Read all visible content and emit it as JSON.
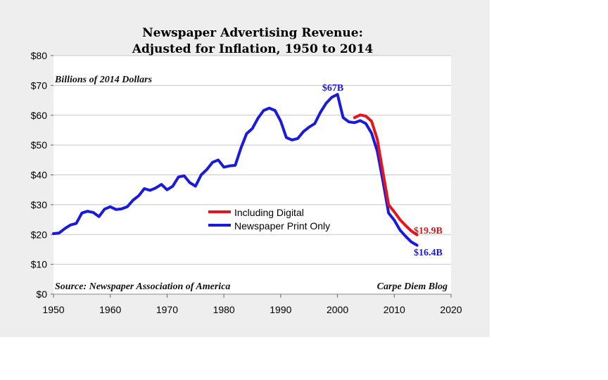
{
  "chart_data": {
    "type": "line",
    "title": "Newspaper Advertising Revenue:",
    "subtitle": "Adjusted for Inflation, 1950 to 2014",
    "ylabel": "Billions of 2014 Dollars",
    "xlabel": "",
    "xlim": [
      1950,
      2020
    ],
    "ylim": [
      0,
      80
    ],
    "x_ticks": [
      1950,
      1960,
      1970,
      1980,
      1990,
      2000,
      2010,
      2020
    ],
    "x_tick_labels": [
      "1950",
      "1960",
      "1970",
      "1980",
      "1990",
      "2000",
      "2010",
      "2020"
    ],
    "y_ticks": [
      0,
      10,
      20,
      30,
      40,
      50,
      60,
      70,
      80
    ],
    "y_tick_labels": [
      "$0",
      "$10",
      "$20",
      "$30",
      "$40",
      "$50",
      "$60",
      "$70",
      "$80"
    ],
    "grid": true,
    "legend_position": "center-left",
    "series": [
      {
        "name": "Including Digital",
        "color": "#e8141b",
        "x": [
          2003,
          2004,
          2005,
          2006,
          2007,
          2008,
          2009,
          2010,
          2011,
          2012,
          2013,
          2014
        ],
        "values": [
          59.2,
          60.1,
          59.7,
          58.0,
          52.0,
          41.0,
          30.0,
          27.6,
          25.0,
          23.0,
          21.2,
          19.9
        ]
      },
      {
        "name": "Newspaper Print Only",
        "color": "#1a1adc",
        "x": [
          1950,
          1951,
          1952,
          1953,
          1954,
          1955,
          1956,
          1957,
          1958,
          1959,
          1960,
          1961,
          1962,
          1963,
          1964,
          1965,
          1966,
          1967,
          1968,
          1969,
          1970,
          1971,
          1972,
          1973,
          1974,
          1975,
          1976,
          1977,
          1978,
          1979,
          1980,
          1981,
          1982,
          1983,
          1984,
          1985,
          1986,
          1987,
          1988,
          1989,
          1990,
          1991,
          1992,
          1993,
          1994,
          1995,
          1996,
          1997,
          1998,
          1999,
          2000,
          2001,
          2002,
          2003,
          2004,
          2005,
          2006,
          2007,
          2008,
          2009,
          2010,
          2011,
          2012,
          2013,
          2014
        ],
        "values": [
          20.3,
          20.5,
          22.0,
          23.2,
          23.7,
          27.2,
          27.8,
          27.4,
          26.0,
          28.5,
          29.3,
          28.4,
          28.6,
          29.3,
          31.5,
          33.0,
          35.4,
          34.8,
          35.6,
          36.8,
          35.0,
          36.2,
          39.3,
          39.7,
          37.4,
          36.2,
          40.0,
          41.8,
          44.2,
          45.0,
          42.6,
          43.0,
          43.2,
          49.0,
          53.8,
          55.5,
          59.0,
          61.6,
          62.4,
          61.6,
          58.0,
          52.5,
          51.7,
          52.2,
          54.5,
          56.0,
          57.2,
          61.0,
          64.0,
          66.0,
          67.0,
          59.2,
          57.8,
          57.5,
          58.2,
          57.2,
          54.0,
          48.0,
          38.0,
          27.2,
          24.8,
          21.5,
          19.4,
          17.5,
          16.4
        ]
      }
    ],
    "annotations": {
      "peak": "$67B",
      "digital_end": "$19.9B",
      "print_end": "$16.4B",
      "source": "Source: Newspaper Association of America",
      "credit": "Carpe Diem Blog"
    }
  }
}
